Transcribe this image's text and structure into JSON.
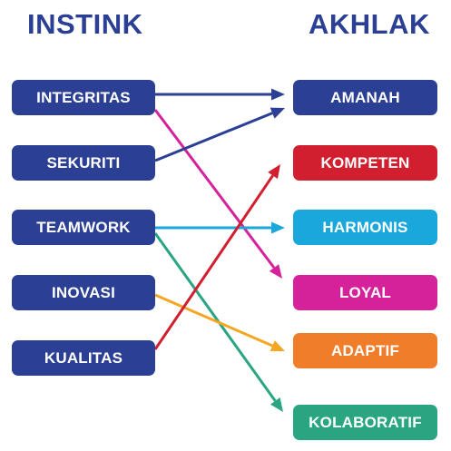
{
  "headings": {
    "left": "INSTINK",
    "right": "AKHLAK"
  },
  "instink": [
    "INTEGRITAS",
    "SEKURITI",
    "TEAMWORK",
    "INOVASI",
    "KUALITAS"
  ],
  "akhlak": [
    {
      "label": "AMANAH",
      "color": "#2b3f95"
    },
    {
      "label": "KOMPETEN",
      "color": "#d11f2f"
    },
    {
      "label": "HARMONIS",
      "color": "#1aa7dc"
    },
    {
      "label": "LOYAL",
      "color": "#d6229a"
    },
    {
      "label": "ADAPTIF",
      "color": "#f07d2a"
    },
    {
      "label": "KOLABORATIF",
      "color": "#2aa582"
    }
  ],
  "links": [
    {
      "from": "INTEGRITAS",
      "to": "AMANAH",
      "color": "#2b3f95"
    },
    {
      "from": "INTEGRITAS",
      "to": "LOYAL",
      "color": "#d6229a"
    },
    {
      "from": "SEKURITI",
      "to": "AMANAH",
      "color": "#2b3f95"
    },
    {
      "from": "TEAMWORK",
      "to": "HARMONIS",
      "color": "#1aa7dc"
    },
    {
      "from": "TEAMWORK",
      "to": "KOLABORATIF",
      "color": "#2aa582"
    },
    {
      "from": "INOVASI",
      "to": "ADAPTIF",
      "color": "#f5a623"
    },
    {
      "from": "KUALITAS",
      "to": "KOMPETEN",
      "color": "#d11f2f"
    }
  ]
}
